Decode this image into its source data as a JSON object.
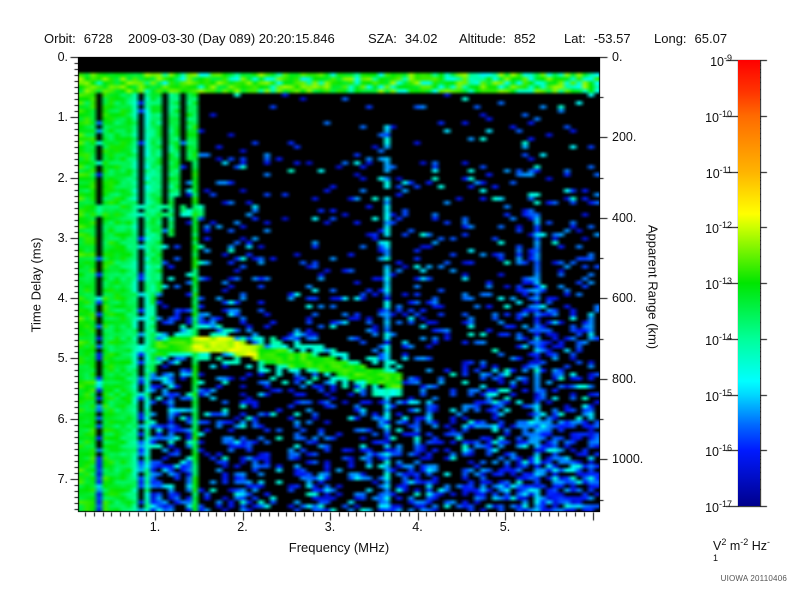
{
  "header": {
    "fields": [
      {
        "label": "Orbit:",
        "value": "6728"
      },
      {
        "label": "",
        "value": "2009-03-30 (Day 089) 20:20:15.846"
      },
      {
        "label": "SZA:",
        "value": "34.02"
      },
      {
        "label": "Altitude:",
        "value": "852"
      },
      {
        "label": "Lat:",
        "value": "-53.57"
      },
      {
        "label": "Long:",
        "value": "65.07"
      }
    ]
  },
  "credit": "UIOWA 20110406",
  "chart_data": {
    "type": "heatmap",
    "title": "",
    "xlabel": "Frequency (MHz)",
    "ylabel": "Time Delay (ms)",
    "ylabel_right": "Apparent Range (km)",
    "xlim": [
      0.12,
      6.08
    ],
    "ylim": [
      0,
      7.55
    ],
    "ylim_right_km": [
      0,
      1130
    ],
    "grid": false,
    "x_ticks": [
      {
        "v": 1,
        "label": "1."
      },
      {
        "v": 2,
        "label": "2."
      },
      {
        "v": 3,
        "label": "3."
      },
      {
        "v": 4,
        "label": "4."
      },
      {
        "v": 5,
        "label": "5."
      }
    ],
    "y_ticks": [
      {
        "v": 0,
        "label": "0."
      },
      {
        "v": 1,
        "label": "1."
      },
      {
        "v": 2,
        "label": "2."
      },
      {
        "v": 3,
        "label": "3."
      },
      {
        "v": 4,
        "label": "4."
      },
      {
        "v": 5,
        "label": "5."
      },
      {
        "v": 6,
        "label": "6."
      },
      {
        "v": 7,
        "label": "7."
      }
    ],
    "y_ticks_right": [
      {
        "v": 0,
        "label": "0."
      },
      {
        "v": 200,
        "label": "200."
      },
      {
        "v": 400,
        "label": "400."
      },
      {
        "v": 600,
        "label": "600."
      },
      {
        "v": 800,
        "label": "800."
      },
      {
        "v": 1000,
        "label": "1000."
      }
    ],
    "colorbar": {
      "tick_exponents": [
        "-9",
        "-10",
        "-11",
        "-12",
        "-13",
        "-14",
        "-15",
        "-16",
        "-17"
      ],
      "unit_parts": [
        {
          "base": "V",
          "exp": "2"
        },
        {
          "base": "m",
          "exp": "-2"
        },
        {
          "base": "Hz",
          "exp": "-1"
        }
      ],
      "stops": [
        {
          "pos": 0.0,
          "color": "#ff0000"
        },
        {
          "pos": 0.07,
          "color": "#ff3300"
        },
        {
          "pos": 0.125,
          "color": "#ff6a00"
        },
        {
          "pos": 0.25,
          "color": "#ffb300"
        },
        {
          "pos": 0.345,
          "color": "#ffff00"
        },
        {
          "pos": 0.375,
          "color": "#ccff00"
        },
        {
          "pos": 0.5,
          "color": "#00e600"
        },
        {
          "pos": 0.625,
          "color": "#00ff99"
        },
        {
          "pos": 0.72,
          "color": "#00ffff"
        },
        {
          "pos": 0.75,
          "color": "#00d9ff"
        },
        {
          "pos": 0.82,
          "color": "#0066ff"
        },
        {
          "pos": 0.875,
          "color": "#001aff"
        },
        {
          "pos": 1.0,
          "color": "#00008c"
        }
      ]
    },
    "spectrogram": {
      "seed": 20110406,
      "grid": {
        "nx": 87,
        "ny": 114
      },
      "black_top_ms": 0.26,
      "top_band": {
        "t0": 0.26,
        "t1": 0.6,
        "dim_prob_left": 0.15,
        "dim_prob_right": 0.3,
        "f_split": 3.7,
        "v_bright": [
          0.44,
          0.6
        ],
        "v_dim": [
          0.27,
          0.38
        ]
      },
      "noise": {
        "base": 0.045,
        "depth_gain": 0.62,
        "depth_pow": 1.7,
        "cyan_prob": 0.14,
        "v_blue": [
          0.07,
          0.22
        ],
        "v_cyan": [
          0.24,
          0.33
        ],
        "top_suppress_t": 0.62,
        "top_suppress_factor": 0.25
      },
      "column_bands": [
        [
          0.12,
          0.78,
          1.3
        ],
        [
          0.78,
          1.45,
          1.05
        ],
        [
          1.45,
          1.82,
          0.7
        ],
        [
          1.82,
          2.34,
          0.85
        ],
        [
          2.34,
          2.62,
          0.28
        ],
        [
          2.62,
          3.04,
          0.8
        ],
        [
          3.04,
          3.3,
          0.32
        ],
        [
          3.3,
          3.56,
          0.65
        ],
        [
          3.56,
          4.26,
          0.85
        ],
        [
          4.26,
          4.52,
          0.5
        ],
        [
          4.52,
          5.2,
          0.95
        ],
        [
          5.2,
          5.5,
          1.25
        ],
        [
          5.5,
          6.08,
          1.05
        ]
      ],
      "harmonic_stripes": [
        {
          "f": 0.125,
          "len": 7.55,
          "base": 0.5
        },
        {
          "f": 0.22,
          "len": 7.55,
          "base": 0.48
        },
        {
          "f": 0.315,
          "len": 7.55,
          "base": 0.48
        },
        {
          "f": 0.41,
          "len": 7.55,
          "base": 0.48
        },
        {
          "f": 0.505,
          "len": 7.55,
          "base": 0.47
        },
        {
          "f": 0.6,
          "len": 7.55,
          "base": 0.46
        },
        {
          "f": 0.695,
          "len": 7.55,
          "base": 0.45
        },
        {
          "f": 0.79,
          "len": 7.55,
          "base": 0.38
        },
        {
          "f": 0.885,
          "len": 7.55,
          "base": 0.36
        },
        {
          "f": 0.98,
          "len": 5.2,
          "base": 0.42
        },
        {
          "f": 1.075,
          "len": 3.9,
          "base": 0.42
        },
        {
          "f": 1.17,
          "len": 3.0,
          "base": 0.42
        },
        {
          "f": 1.265,
          "len": 2.3,
          "base": 0.43
        },
        {
          "f": 1.36,
          "len": 1.7,
          "base": 0.44
        },
        {
          "f": 1.46,
          "len": 7.55,
          "base": 0.46
        },
        {
          "f": 3.63,
          "len": 7.55,
          "base": 0.25,
          "start": 1.1,
          "gap_prob": 0.25
        },
        {
          "f": 5.33,
          "len": 7.55,
          "base": 0.2,
          "start": 2.6,
          "gap_prob": 0.3
        }
      ],
      "echo_trace": {
        "points": [
          [
            1.0,
            4.84
          ],
          [
            1.3,
            4.77
          ],
          [
            1.6,
            4.74
          ],
          [
            1.9,
            4.8
          ],
          [
            2.15,
            4.9
          ],
          [
            2.45,
            4.99
          ],
          [
            2.75,
            5.05
          ],
          [
            3.05,
            5.12
          ],
          [
            3.3,
            5.24
          ],
          [
            3.55,
            5.31
          ],
          [
            3.85,
            5.4
          ]
        ],
        "core_halfwidth_ms": 0.13,
        "halo_halfwidth_ms": 0.3,
        "halo_prob": 0.45,
        "v_halo": 0.28,
        "bright_f_range": [
          1.4,
          2.15
        ],
        "v_bright": 0.62,
        "v_normal": 0.52
      },
      "h_band": {
        "t": 2.54,
        "halfw": 0.09,
        "fmax": 1.55,
        "prob": 0.75,
        "v": [
          0.3,
          0.42
        ]
      }
    }
  }
}
